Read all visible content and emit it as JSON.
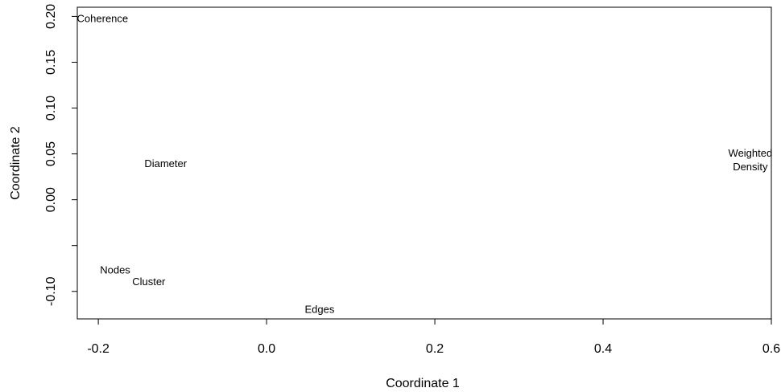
{
  "chart_data": {
    "type": "scatter",
    "title": "",
    "xlabel": "Coordinate 1",
    "ylabel": "Coordinate 2",
    "xlim": [
      -0.225,
      0.6
    ],
    "ylim": [
      -0.13,
      0.21
    ],
    "x_ticks": [
      {
        "value": -0.2,
        "label": "-0.2"
      },
      {
        "value": 0.0,
        "label": "0.0"
      },
      {
        "value": 0.2,
        "label": "0.2"
      },
      {
        "value": 0.4,
        "label": "0.4"
      },
      {
        "value": 0.6,
        "label": "0.6"
      }
    ],
    "y_ticks": [
      {
        "value": -0.1,
        "label": "-0.10"
      },
      {
        "value": -0.05,
        "label": ""
      },
      {
        "value": 0.0,
        "label": "0.00"
      },
      {
        "value": 0.05,
        "label": "0.05"
      },
      {
        "value": 0.1,
        "label": "0.10"
      },
      {
        "value": 0.15,
        "label": "0.15"
      },
      {
        "value": 0.2,
        "label": "0.20"
      }
    ],
    "points": [
      {
        "label": "Coherence",
        "x": -0.195,
        "y": 0.198
      },
      {
        "label": "Diameter",
        "x": -0.12,
        "y": 0.04
      },
      {
        "label": "Nodes",
        "x": -0.18,
        "y": -0.076
      },
      {
        "label": "Cluster",
        "x": -0.14,
        "y": -0.089
      },
      {
        "label": "Edges",
        "x": 0.063,
        "y": -0.119
      },
      {
        "label": "Weighted\nDensity",
        "x": 0.575,
        "y": 0.044
      }
    ],
    "grid": false,
    "legend": "none"
  }
}
